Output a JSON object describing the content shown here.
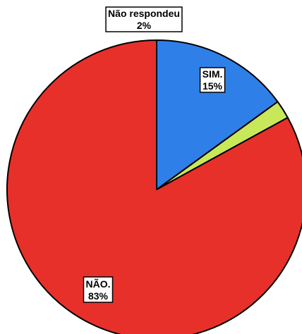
{
  "chart_data": {
    "type": "pie",
    "title": "",
    "categories": [
      "SIM.",
      "Não respondeu",
      "NÃO."
    ],
    "values": [
      15,
      2,
      83
    ],
    "value_labels": [
      "15%",
      "2%",
      "83%"
    ],
    "colors": [
      "#2f7fe8",
      "#c8e85a",
      "#e8302a"
    ],
    "border_color": "#000000",
    "start_angle_deg": 0,
    "direction": "clockwise",
    "legend": "none"
  }
}
